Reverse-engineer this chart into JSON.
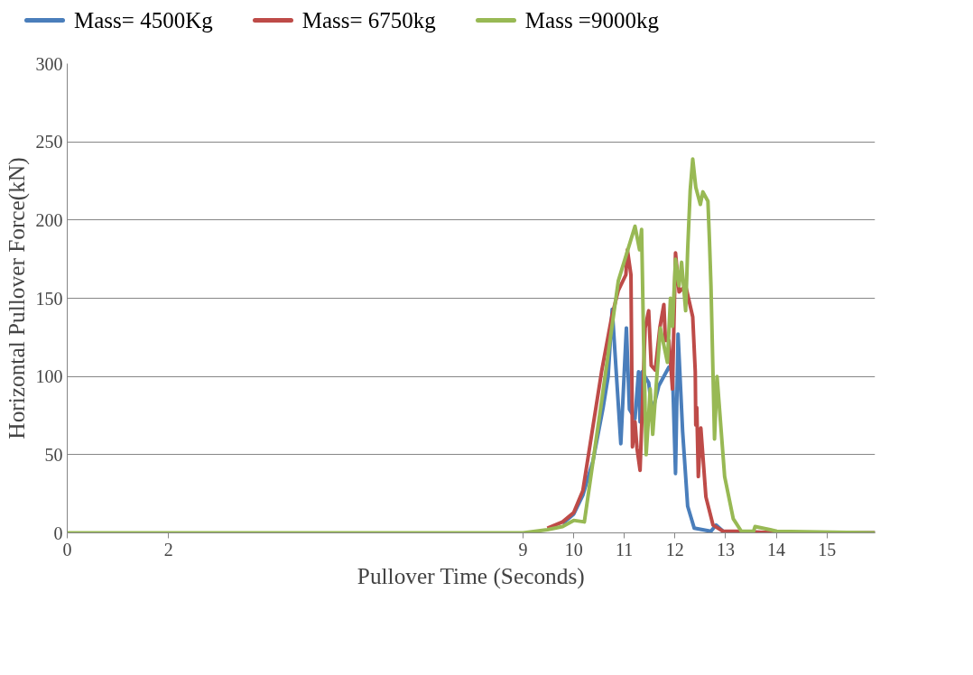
{
  "chart_data": {
    "type": "line",
    "xlabel": "Pullover Time (Seconds)",
    "ylabel": "Horizontal Pullover Force(kN)",
    "xlim": [
      0,
      15.95
    ],
    "xticks": [
      0,
      2,
      9,
      10,
      11,
      12,
      13,
      14,
      15
    ],
    "ylim": [
      0,
      300
    ],
    "yticks": [
      0,
      50,
      100,
      150,
      200,
      250,
      300
    ],
    "grid": "y",
    "legend": "top",
    "marker": "none",
    "line_style": "solid",
    "series": [
      {
        "name": "Mass= 4500Kg",
        "color": "#4a7ebb",
        "x": [
          9.78,
          10.0,
          10.18,
          10.38,
          10.58,
          10.68,
          10.76,
          10.93,
          11.04,
          11.1,
          11.21,
          11.28,
          11.31,
          11.35,
          11.48,
          11.55,
          11.68,
          11.88,
          11.95,
          12.01,
          12.06,
          12.15,
          12.25,
          12.38,
          12.71,
          12.81,
          12.95,
          14,
          15.95
        ],
        "values": [
          6,
          12,
          24,
          46,
          80,
          100,
          143,
          57,
          131,
          79,
          73,
          103,
          71,
          103,
          96,
          77,
          94,
          106,
          103,
          38,
          127,
          65,
          17,
          3,
          1,
          5,
          1,
          0,
          0
        ]
      },
      {
        "name": "Mass= 6750kg",
        "color": "#be4b48",
        "x": [
          9.48,
          9.78,
          10.0,
          10.18,
          10.55,
          10.75,
          10.88,
          11.03,
          11.06,
          11.13,
          11.16,
          11.21,
          11.25,
          11.31,
          11.41,
          11.48,
          11.53,
          11.61,
          11.7,
          11.78,
          11.81,
          11.88,
          11.95,
          12.01,
          12.08,
          12.21,
          12.35,
          12.4,
          12.41,
          12.43,
          12.46,
          12.51,
          12.61,
          12.75,
          12.95,
          13.21,
          14,
          15.95
        ],
        "values": [
          3,
          7,
          13,
          27,
          103,
          138,
          155,
          165,
          181,
          165,
          55,
          71,
          54,
          40,
          131,
          142,
          107,
          104,
          131,
          146,
          123,
          123,
          92,
          179,
          154,
          158,
          138,
          103,
          69,
          80,
          36,
          67,
          23,
          5,
          1,
          1,
          0,
          0
        ]
      },
      {
        "name": "Mass =9000kg",
        "color": "#98b954",
        "x": [
          0,
          2,
          9,
          9.48,
          9.78,
          10.0,
          10.21,
          10.55,
          10.88,
          11.21,
          11.3,
          11.34,
          11.38,
          11.43,
          11.48,
          11.51,
          11.56,
          11.71,
          11.85,
          11.91,
          11.95,
          12.01,
          12.08,
          12.13,
          12.21,
          12.25,
          12.3,
          12.35,
          12.41,
          12.5,
          12.55,
          12.65,
          12.68,
          12.71,
          12.78,
          12.83,
          12.98,
          13.15,
          13.31,
          13.55,
          13.58,
          13.88,
          14.01,
          15.95
        ],
        "values": [
          0,
          0,
          0,
          2,
          4,
          8,
          7,
          84,
          161,
          196,
          181,
          194,
          123,
          50,
          75,
          92,
          63,
          131,
          109,
          150,
          132,
          175,
          158,
          173,
          142,
          181,
          219,
          239,
          221,
          210,
          218,
          212,
          187,
          158,
          60,
          100,
          36,
          9,
          1,
          1,
          4,
          2,
          1,
          0
        ]
      }
    ]
  }
}
